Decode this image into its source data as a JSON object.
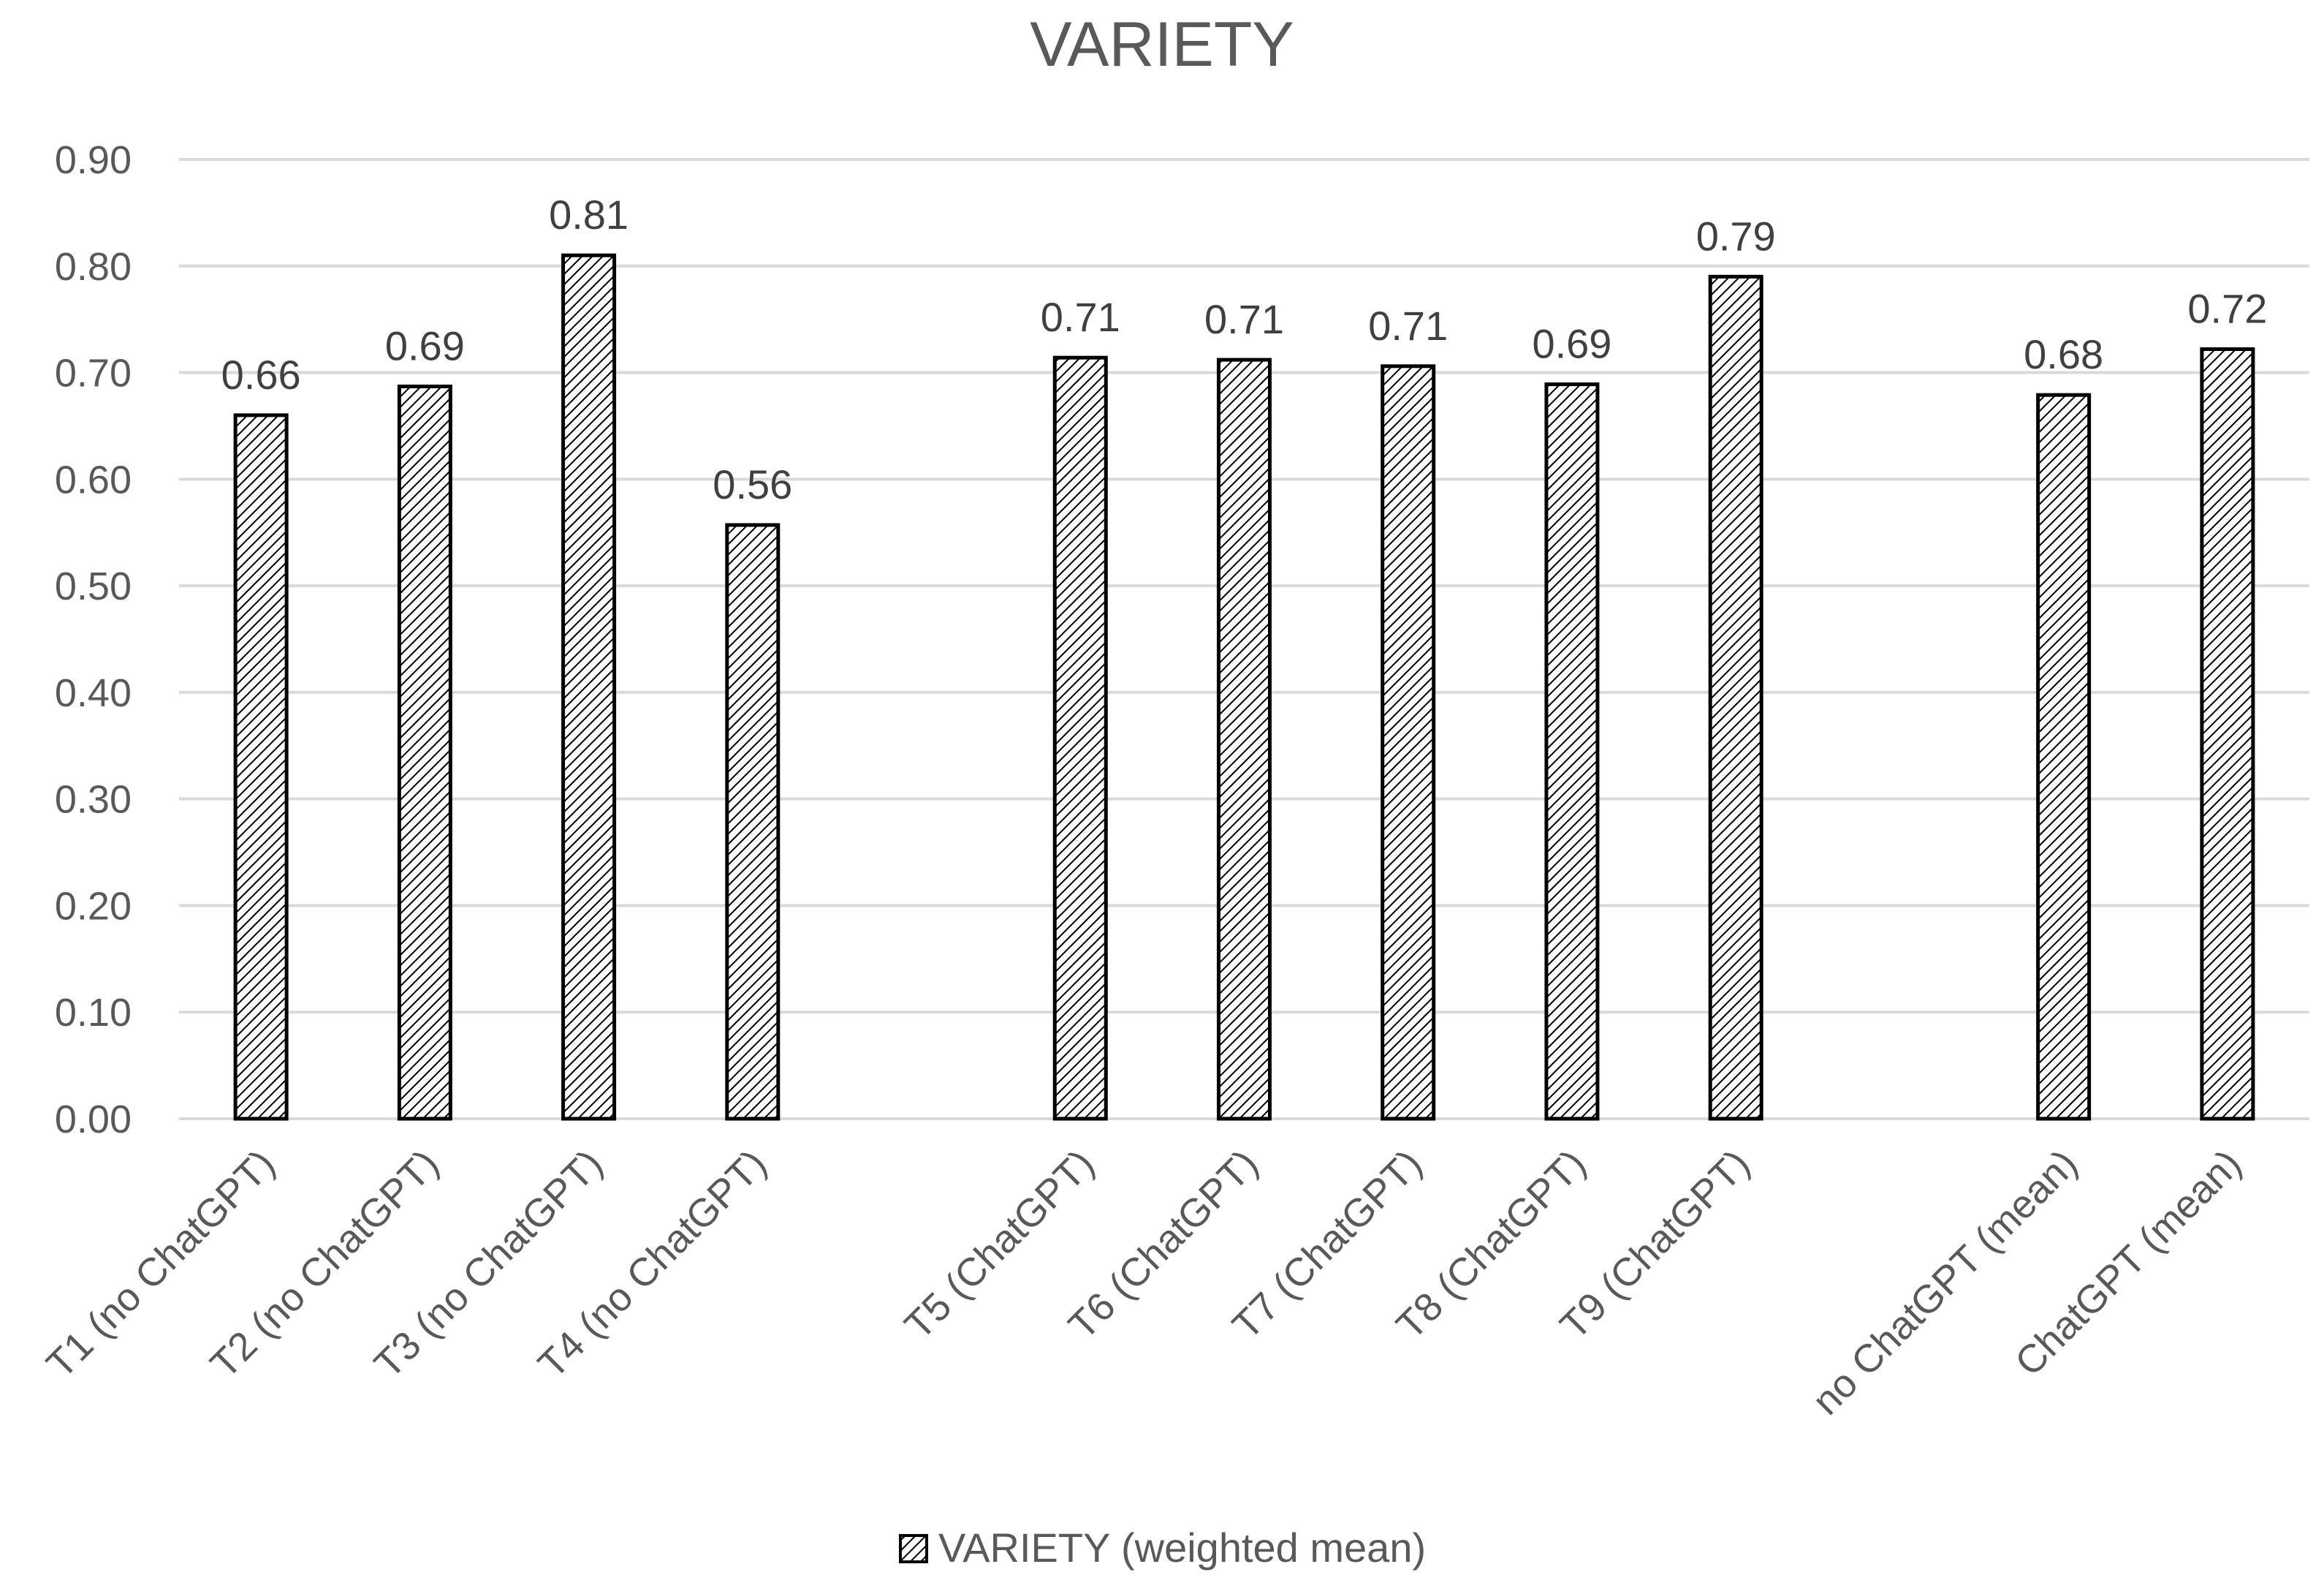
{
  "chart_data": {
    "type": "bar",
    "title": "VARIETY",
    "xlabel": "",
    "ylabel": "",
    "ylim": [
      0,
      0.9
    ],
    "y_ticks": [
      "0.00",
      "0.10",
      "0.20",
      "0.30",
      "0.40",
      "0.50",
      "0.60",
      "0.70",
      "0.80",
      "0.90"
    ],
    "grid": true,
    "legend_position": "bottom",
    "bar_pattern": "diagonal-hatch",
    "colors": {
      "bar_stroke": "#000000",
      "hatch": "#000000",
      "grid": "#d9d9d9",
      "text": "#595959"
    },
    "categories": [
      "T1 (no ChatGPT)",
      "T2 (no ChatGPT)",
      "T3 (no ChatGPT)",
      "T4 (no ChatGPT)",
      "",
      "T5 (ChatGPT)",
      "T6 (ChatGPT)",
      "T7 (ChatGPT)",
      "T8 (ChatGPT)",
      "T9 (ChatGPT)",
      "",
      "no ChatGPT (mean)",
      "ChatGPT (mean)"
    ],
    "series": [
      {
        "name": "VARIETY (weighted mean)",
        "values": [
          0.66,
          0.687,
          0.81,
          0.557,
          null,
          0.714,
          0.712,
          0.706,
          0.689,
          0.79,
          null,
          0.679,
          0.722
        ],
        "labels": [
          "0.66",
          "0.69",
          "0.81",
          "0.56",
          "",
          "0.71",
          "0.71",
          "0.71",
          "0.69",
          "0.79",
          "",
          "0.68",
          "0.72"
        ]
      }
    ]
  }
}
